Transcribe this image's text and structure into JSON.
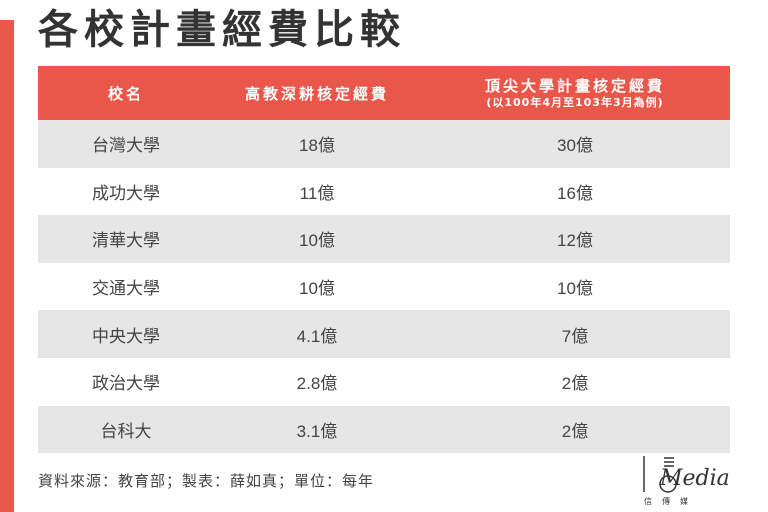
{
  "colors": {
    "accent": "#e8574a",
    "row_shade": "#e6e6e6"
  },
  "title": "各校計畫經費比較",
  "table": {
    "headers": {
      "school": "校名",
      "teaching_excellence": "高教深耕核定經費",
      "top_university": "頂尖大學計畫核定經費",
      "top_university_note": "(以100年4月至103年3月為例)"
    },
    "rows": [
      {
        "school": "台灣大學",
        "teaching_excellence": "18億",
        "top_university": "30億"
      },
      {
        "school": "成功大學",
        "teaching_excellence": "11億",
        "top_university": "16億"
      },
      {
        "school": "清華大學",
        "teaching_excellence": "10億",
        "top_university": "12億"
      },
      {
        "school": "交通大學",
        "teaching_excellence": "10億",
        "top_university": "10億"
      },
      {
        "school": "中央大學",
        "teaching_excellence": "4.1億",
        "top_university": "7億"
      },
      {
        "school": "政治大學",
        "teaching_excellence": "2.8億",
        "top_university": "2億"
      },
      {
        "school": "台科大",
        "teaching_excellence": "3.1億",
        "top_university": "2億"
      }
    ]
  },
  "source_note": "資料來源：教育部；製表：薛如真；單位：每年",
  "logo": {
    "text": "Media",
    "subtext": "信傳媒"
  }
}
